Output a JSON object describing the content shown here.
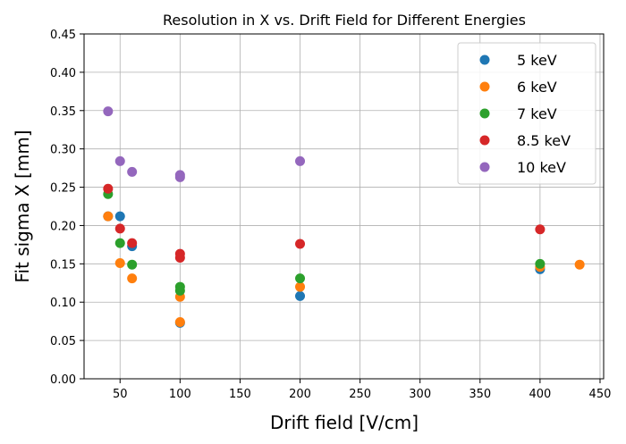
{
  "chart_data": {
    "type": "scatter",
    "title": "Resolution in X vs. Drift Field for Different Energies",
    "xlabel": "Drift field [V/cm]",
    "ylabel": "Fit sigma X [mm]",
    "xlim": [
      20,
      453
    ],
    "ylim": [
      0,
      0.45
    ],
    "xticks": [
      50,
      100,
      150,
      200,
      250,
      300,
      350,
      400,
      450
    ],
    "yticks": [
      0.0,
      0.05,
      0.1,
      0.15,
      0.2,
      0.25,
      0.3,
      0.35,
      0.4,
      0.45
    ],
    "xtick_labels": [
      "50",
      "100",
      "150",
      "200",
      "250",
      "300",
      "350",
      "400",
      "450"
    ],
    "ytick_labels": [
      "0.00",
      "0.05",
      "0.10",
      "0.15",
      "0.20",
      "0.25",
      "0.30",
      "0.35",
      "0.40",
      "0.45"
    ],
    "grid": true,
    "legend_position": "top-right",
    "series": [
      {
        "name": "5 keV",
        "color": "#1f77b4",
        "x": [
          40,
          50,
          60,
          100,
          200,
          400
        ],
        "y": [
          0.212,
          0.212,
          0.173,
          0.073,
          0.108,
          0.143
        ]
      },
      {
        "name": "6 keV",
        "color": "#ff7f0e",
        "x": [
          40,
          50,
          60,
          100,
          100,
          200,
          400,
          433
        ],
        "y": [
          0.212,
          0.151,
          0.131,
          0.107,
          0.074,
          0.12,
          0.146,
          0.149
        ]
      },
      {
        "name": "7 keV",
        "color": "#2ca02c",
        "x": [
          40,
          50,
          60,
          100,
          100,
          200,
          400
        ],
        "y": [
          0.241,
          0.177,
          0.149,
          0.12,
          0.115,
          0.131,
          0.15
        ]
      },
      {
        "name": "8.5 keV",
        "color": "#d62728",
        "x": [
          40,
          50,
          60,
          100,
          100,
          200,
          400
        ],
        "y": [
          0.248,
          0.196,
          0.177,
          0.163,
          0.158,
          0.176,
          0.195
        ]
      },
      {
        "name": "10 keV",
        "color": "#9467bd",
        "x": [
          40,
          50,
          60,
          100,
          100,
          200
        ],
        "y": [
          0.349,
          0.284,
          0.27,
          0.266,
          0.263,
          0.284
        ]
      }
    ]
  }
}
